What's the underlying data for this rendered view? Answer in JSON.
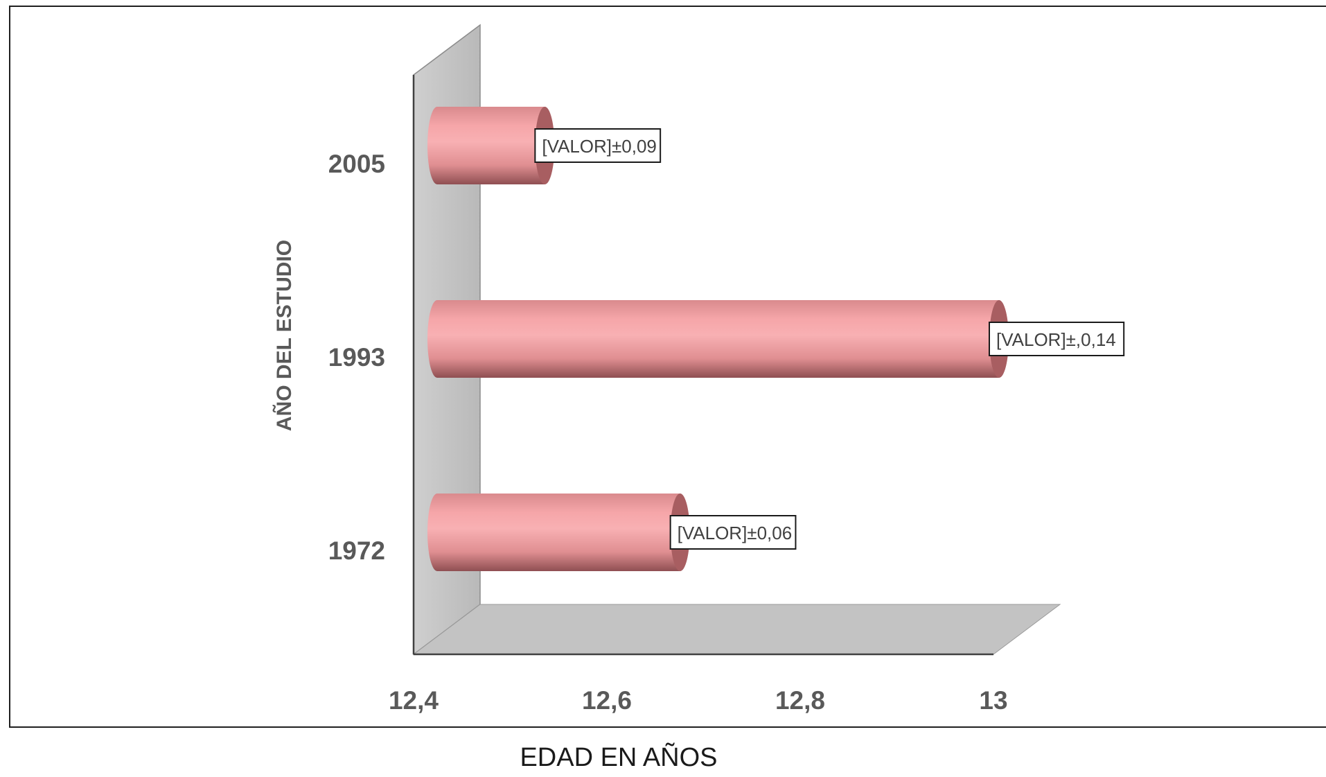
{
  "chart_data": {
    "type": "bar",
    "orientation": "horizontal",
    "style": "3d-cylinder",
    "categories": [
      "2005",
      "1993",
      "1972"
    ],
    "values": [
      12.53,
      13.0,
      12.67
    ],
    "data_labels": [
      "[VALOR]±0,09",
      "[VALOR]±,0,14",
      "[VALOR]±0,06"
    ],
    "x_ticks": [
      "12,4",
      "12,6",
      "12,8",
      "13"
    ],
    "xlim": [
      12.4,
      13.0
    ],
    "xlabel": "EDAD EN AÑOS",
    "ylabel": "AÑO DEL ESTUDIO",
    "grid": false,
    "colors": {
      "bar": "#f4a0a3",
      "bar_dark": "#a85e61",
      "wall": "#c0c0c0"
    }
  }
}
